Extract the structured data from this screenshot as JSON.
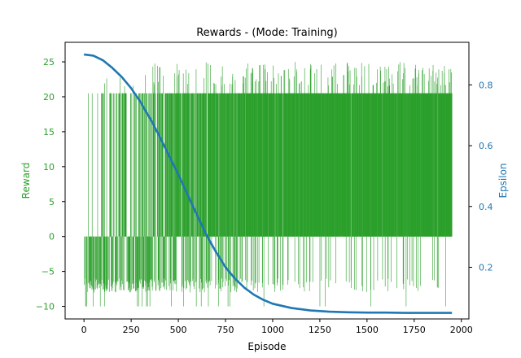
{
  "chart_data": {
    "type": "bar+line",
    "title": "Rewards - (Mode: Training)",
    "xlabel": "Episode",
    "ylabel": "Reward",
    "y2label": "Epsilon",
    "xlim": [
      -100,
      2040
    ],
    "ylim": [
      -11.8,
      27.8
    ],
    "y2lim": [
      0.03,
      0.94
    ],
    "xticks": [
      0,
      250,
      500,
      750,
      1000,
      1250,
      1500,
      1750,
      2000
    ],
    "yticks": [
      -10,
      -5,
      0,
      5,
      10,
      15,
      20,
      25
    ],
    "y2ticks": [
      0.2,
      0.4,
      0.6,
      0.8
    ],
    "grid": false,
    "legend": "none",
    "colors": {
      "reward": "#2ca02c",
      "epsilon": "#1f77b4",
      "axes": "#000000"
    },
    "series": [
      {
        "type": "bar",
        "axis": "left",
        "n_episodes": 1950,
        "success_value": 20.5,
        "fail_value": -7,
        "peak_value": 25,
        "min_value": -10,
        "x_sample": [
          0,
          100,
          200,
          300,
          400,
          500,
          600,
          700,
          800,
          900,
          1000,
          1100,
          1200,
          1300,
          1400,
          1500,
          1600,
          1700,
          1800,
          1900,
          1950
        ],
        "success_fraction": [
          0.04,
          0.12,
          0.22,
          0.3,
          0.45,
          0.55,
          0.62,
          0.68,
          0.74,
          0.8,
          0.84,
          0.87,
          0.88,
          0.89,
          0.9,
          0.9,
          0.9,
          0.91,
          0.91,
          0.91,
          0.91
        ]
      },
      {
        "type": "line",
        "axis": "right",
        "x": [
          0,
          50,
          100,
          150,
          200,
          250,
          300,
          350,
          400,
          450,
          500,
          550,
          600,
          650,
          700,
          750,
          800,
          850,
          900,
          950,
          1000,
          1100,
          1200,
          1300,
          1400,
          1500,
          1600,
          1700,
          1800,
          1900,
          1950
        ],
        "y": [
          0.9,
          0.896,
          0.881,
          0.856,
          0.826,
          0.789,
          0.743,
          0.69,
          0.631,
          0.568,
          0.505,
          0.438,
          0.37,
          0.305,
          0.25,
          0.2,
          0.163,
          0.133,
          0.11,
          0.093,
          0.08,
          0.066,
          0.058,
          0.054,
          0.052,
          0.051,
          0.051,
          0.05,
          0.05,
          0.05,
          0.05
        ]
      }
    ]
  }
}
